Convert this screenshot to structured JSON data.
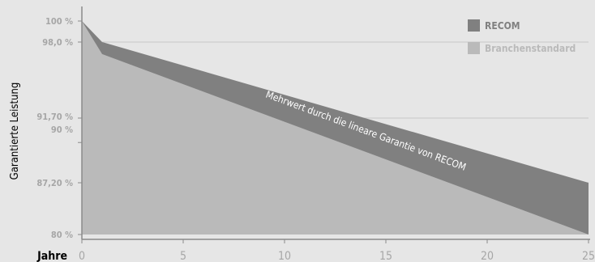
{
  "chart_data": {
    "type": "area",
    "ylabel": "Garantierte Leistung",
    "xlabel": "Jahre",
    "xlim": [
      0,
      25
    ],
    "ylim": [
      80,
      100
    ],
    "x_ticks": [
      "0",
      "5",
      "10",
      "15",
      "20",
      "25"
    ],
    "y_ticks": [
      {
        "value": 100,
        "label": "100 %"
      },
      {
        "value": 98,
        "label": "98,0 %"
      },
      {
        "value": 91.7,
        "label": "91,70 %"
      },
      {
        "value": 90,
        "label": "90 %"
      },
      {
        "value": 87.2,
        "label": "87,20 %"
      },
      {
        "value": 80,
        "label": "80 %"
      }
    ],
    "gridlines_at": [
      98,
      91.7,
      87.2
    ],
    "series": [
      {
        "name": "RECOM",
        "color": "#808080",
        "x": [
          0,
          1,
          25
        ],
        "values": [
          100,
          98.0,
          87.2
        ]
      },
      {
        "name": "Branchenstandard",
        "color": "#bababa",
        "x": [
          0,
          1,
          25
        ],
        "values": [
          100,
          97.0,
          80.0
        ]
      }
    ],
    "annotation": "Mehrwert durch die lineare Garantie von RECOM",
    "legend_position": "top-right",
    "grid": true
  }
}
